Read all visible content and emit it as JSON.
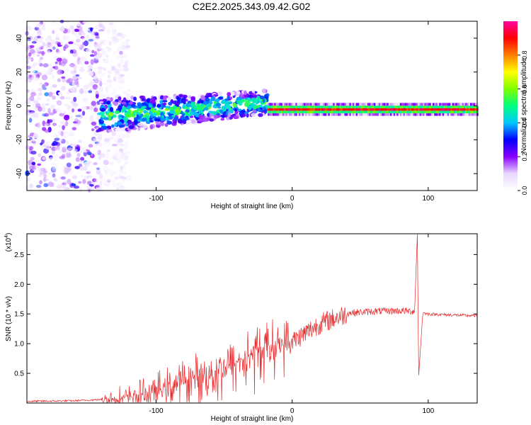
{
  "figure_title": "C2E2.2025.343.09.42.G02",
  "chart_data": [
    {
      "type": "heatmap",
      "title": "C2E2.2025.343.09.42.G02",
      "xlabel": "Height of straight line (km)",
      "ylabel": "Frequency (Hz)",
      "xlim": [
        -195,
        136
      ],
      "ylim": [
        -50,
        50
      ],
      "x_ticks": [
        -100,
        0,
        100
      ],
      "x_tick_labels": [
        "-100",
        "0",
        "100"
      ],
      "y_ticks": [
        -40,
        -20,
        0,
        20,
        40
      ],
      "y_tick_labels": [
        "-40",
        "-20",
        "0",
        "20",
        "40"
      ],
      "colorbar": {
        "label": "Normalized spectral amplitude",
        "range": [
          0,
          1
        ],
        "ticks": [
          0,
          0.2,
          0.4,
          0.6,
          0.8
        ],
        "tick_labels": [
          "0.0",
          "0.2",
          "0.4",
          "0.6",
          "0.8"
        ],
        "colormap": [
          "#ffffff",
          "#e8d8ff",
          "#8a00ff",
          "#0000ff",
          "#00c8ff",
          "#00ff80",
          "#80ff00",
          "#ffff00",
          "#ff8000",
          "#ff0000",
          "#ff00a0"
        ]
      },
      "description_segments": [
        {
          "x_range": [
            -195,
            -142
          ],
          "pattern": "scattered broadband noise across all frequencies",
          "amplitude": 0.15
        },
        {
          "x_range": [
            -142,
            -18
          ],
          "pattern": "mixed signal near 0 Hz, spread -12 to +12 Hz",
          "amplitude": 0.4
        },
        {
          "x_range": [
            -18,
            136
          ],
          "pattern": "narrow tone at about -2 Hz",
          "amplitude": 0.9
        }
      ]
    },
    {
      "type": "line",
      "xlabel": "Height of straight line (km)",
      "ylabel": "SNR (10 * v/v)",
      "y_multiplier_label": "(x10",
      "y_multiplier_exponent": "4",
      "y_multiplier_close": ")",
      "xlim": [
        -195,
        136
      ],
      "ylim": [
        0,
        2.85
      ],
      "x_ticks": [
        -100,
        0,
        100
      ],
      "x_tick_labels": [
        "-100",
        "0",
        "100"
      ],
      "y_ticks": [
        0.5,
        1.0,
        1.5,
        2.0,
        2.5
      ],
      "y_tick_labels": [
        "0.5",
        "1.0",
        "1.5",
        "2.0",
        "2.5"
      ],
      "series_color": "#e8282a",
      "envelope": {
        "x": [
          -195,
          -160,
          -140,
          -120,
          -100,
          -80,
          -60,
          -40,
          -20,
          0,
          20,
          40,
          60,
          80,
          90,
          92,
          93,
          96,
          100,
          136
        ],
        "y": [
          0.03,
          0.04,
          0.06,
          0.1,
          0.22,
          0.38,
          0.52,
          0.7,
          0.95,
          1.05,
          1.35,
          1.52,
          1.55,
          1.56,
          1.55,
          2.85,
          0.45,
          1.52,
          1.5,
          1.47
        ]
      }
    }
  ]
}
